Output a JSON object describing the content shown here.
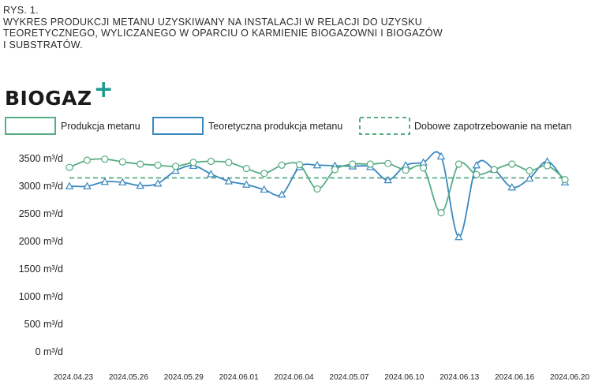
{
  "caption": {
    "label": "RYS. 1.",
    "line1": "WYKRES PRODUKCJI METANU UZYSKIWANY NA INSTALACJI W RELACJI DO UZYSKU",
    "line2": "TEORETYCZNEGO, WYLICZANEGO W OPARCIU O KARMIENIE BIOGAZOWNI I BIOGAZÓW",
    "line3": "I SUBSTRATÓW."
  },
  "logo": {
    "text": "BIOGAZ",
    "plus": "+"
  },
  "colors": {
    "green": "#57ad82",
    "blue": "#3a88c0",
    "teal": "#1c9a8e"
  },
  "chart_data": {
    "type": "line",
    "legend": [
      {
        "name": "Produkcja metanu",
        "style": "solid",
        "color": "#57ad82"
      },
      {
        "name": "Teoretyczna produkcja metanu",
        "style": "solid",
        "color": "#3a88c0"
      },
      {
        "name": "Dobowe zapotrzebowanie na metan",
        "style": "dashed",
        "color": "#57ad82"
      }
    ],
    "y_ticks": [
      "3500 m³/d",
      "3000 m³/d",
      "2500 m³/d",
      "2000 m³/d",
      "1500 m³/d",
      "1000 m³/d",
      "500 m³/d",
      "0 m³/d"
    ],
    "y_tick_values": [
      3500,
      3000,
      2500,
      2000,
      1500,
      1000,
      500,
      0
    ],
    "ylim": [
      0,
      3500
    ],
    "x_labels": [
      "2024.04.23",
      "2024.05.26",
      "2024.05.29",
      "2024.06.01",
      "2024.06.04",
      "2024.05.07",
      "2024.06.10",
      "2024.06.13",
      "2024.06.16",
      "2024.06.20"
    ],
    "grid": false,
    "legend_position": "top",
    "series": [
      {
        "name": "Produkcja metanu",
        "marker": "circle",
        "points": [
          [
            0,
            3340
          ],
          [
            1,
            3470
          ],
          [
            2,
            3490
          ],
          [
            3,
            3440
          ],
          [
            4,
            3400
          ],
          [
            5,
            3380
          ],
          [
            6,
            3360
          ],
          [
            7,
            3430
          ],
          [
            8,
            3450
          ],
          [
            9,
            3430
          ],
          [
            10,
            3320
          ],
          [
            11,
            3230
          ],
          [
            12,
            3380
          ],
          [
            13,
            3390
          ],
          [
            14,
            2950
          ],
          [
            15,
            3300
          ],
          [
            16,
            3400
          ],
          [
            17,
            3400
          ],
          [
            18,
            3410
          ],
          [
            19,
            3290
          ],
          [
            20,
            3330
          ],
          [
            21,
            2520
          ],
          [
            22,
            3400
          ],
          [
            23,
            3210
          ],
          [
            24,
            3300
          ],
          [
            25,
            3400
          ],
          [
            26,
            3280
          ],
          [
            27,
            3370
          ],
          [
            28,
            3120
          ]
        ]
      },
      {
        "name": "Teoretyczna produkcja metanu",
        "marker": "triangle",
        "points": [
          [
            0,
            3000
          ],
          [
            1,
            3000
          ],
          [
            2,
            3080
          ],
          [
            3,
            3070
          ],
          [
            4,
            3010
          ],
          [
            5,
            3050
          ],
          [
            6,
            3280
          ],
          [
            7,
            3370
          ],
          [
            8,
            3220
          ],
          [
            9,
            3090
          ],
          [
            10,
            3030
          ],
          [
            11,
            2940
          ],
          [
            12,
            2850
          ],
          [
            13,
            3350
          ],
          [
            14,
            3380
          ],
          [
            15,
            3370
          ],
          [
            16,
            3360
          ],
          [
            17,
            3350
          ],
          [
            18,
            3110
          ],
          [
            19,
            3380
          ],
          [
            20,
            3430
          ],
          [
            21,
            3540
          ],
          [
            22,
            2080
          ],
          [
            23,
            3380
          ],
          [
            24,
            3300
          ],
          [
            25,
            2980
          ],
          [
            26,
            3140
          ],
          [
            27,
            3450
          ],
          [
            28,
            3070
          ]
        ]
      },
      {
        "name": "Dobowe zapotrzebowanie na metan",
        "style": "dashed",
        "value": 3150
      }
    ]
  }
}
